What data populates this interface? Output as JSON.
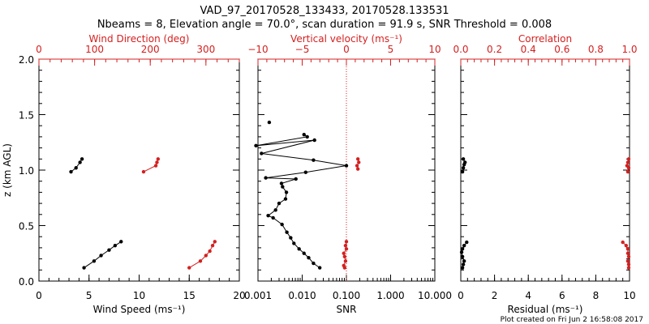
{
  "header": {
    "title": "VAD_97_20170528_133433, 20170528.133531",
    "subtitle": "Nbeams = 8, Elevation angle = 70.0°, scan duration = 91.9 s, SNR Threshold = 0.008"
  },
  "colors": {
    "primary": "#000000",
    "secondary": "#d42020",
    "background": "#ffffff"
  },
  "footer": {
    "created": "Plot created on Fri Jun  2 16:58:08 2017"
  },
  "chart_data": [
    {
      "type": "line",
      "panel": "left",
      "ylabel": "z (km AGL)",
      "ylim": [
        0.0,
        2.0
      ],
      "yticks": [
        0.0,
        0.5,
        1.0,
        1.5,
        2.0
      ],
      "ytick_labels": [
        "0.0",
        "0.5",
        "1.0",
        "1.5",
        "2.0"
      ],
      "bottom_axis": {
        "label": "Wind Speed (ms⁻¹)",
        "lim": [
          0,
          20
        ],
        "ticks": [
          0,
          5,
          10,
          15,
          20
        ],
        "tick_labels": [
          "0",
          "5",
          "10",
          "15",
          "20"
        ]
      },
      "top_axis": {
        "label": "Wind Direction (deg)",
        "lim": [
          0,
          360
        ],
        "ticks": [
          0,
          100,
          200,
          300
        ],
        "tick_labels": [
          "0",
          "100",
          "200",
          "300"
        ]
      },
      "series": [
        {
          "name": "Wind Speed",
          "axis": "bottom",
          "color": "#000000",
          "segments": [
            [
              [
                4.5,
                0.12
              ],
              [
                5.5,
                0.18
              ],
              [
                6.2,
                0.23
              ],
              [
                7.0,
                0.28
              ],
              [
                7.6,
                0.32
              ],
              [
                8.2,
                0.355
              ]
            ],
            [
              [
                3.2,
                0.985
              ],
              [
                3.7,
                1.02
              ],
              [
                4.1,
                1.07
              ],
              [
                4.3,
                1.1
              ]
            ]
          ]
        },
        {
          "name": "Wind Direction",
          "axis": "top",
          "color": "#d42020",
          "segments": [
            [
              [
                270,
                0.12
              ],
              [
                290,
                0.18
              ],
              [
                300,
                0.23
              ],
              [
                307,
                0.27
              ],
              [
                312,
                0.32
              ],
              [
                316,
                0.355
              ]
            ],
            [
              [
                188,
                0.985
              ],
              [
                210,
                1.04
              ],
              [
                212,
                1.07
              ],
              [
                214,
                1.1
              ]
            ]
          ]
        }
      ]
    },
    {
      "type": "line",
      "panel": "middle",
      "ylim": [
        0.0,
        2.0
      ],
      "bottom_axis": {
        "label": "SNR",
        "scale": "log",
        "lim": [
          0.001,
          10
        ],
        "ticks": [
          0.001,
          0.01,
          0.1,
          1,
          10
        ],
        "tick_labels": [
          "0.001",
          "0.010",
          "0.100",
          "1.000",
          "10.000"
        ]
      },
      "top_axis": {
        "label": "Vertical velocity (ms⁻¹)",
        "lim": [
          -10,
          10
        ],
        "ticks": [
          -10,
          -5,
          0,
          5,
          10
        ],
        "tick_labels": [
          "−10",
          "−5",
          "0",
          "5",
          "10"
        ]
      },
      "reference_line": {
        "axis": "top",
        "value": 0,
        "style": "dotted",
        "color": "#d42020"
      },
      "series": [
        {
          "name": "SNR",
          "axis": "bottom",
          "color": "#000000",
          "segments": [
            [
              [
                0.025,
                0.12
              ],
              [
                0.018,
                0.16
              ],
              [
                0.014,
                0.21
              ],
              [
                0.011,
                0.25
              ],
              [
                0.0085,
                0.29
              ],
              [
                0.0065,
                0.34
              ],
              [
                0.0055,
                0.39
              ],
              [
                0.0045,
                0.44
              ],
              [
                0.0035,
                0.51
              ],
              [
                0.0022,
                0.57
              ],
              [
                0.0017,
                0.59
              ],
              [
                0.0025,
                0.64
              ],
              [
                0.003,
                0.7
              ],
              [
                0.0042,
                0.74
              ],
              [
                0.0044,
                0.8
              ],
              [
                0.0036,
                0.85
              ],
              [
                0.0034,
                0.88
              ],
              [
                0.0072,
                0.92
              ],
              [
                0.0015,
                0.93
              ],
              [
                0.012,
                0.98
              ],
              [
                0.1,
                1.04
              ],
              [
                0.018,
                1.09
              ],
              [
                0.0012,
                1.15
              ],
              [
                0.019,
                1.27
              ],
              [
                0.0009,
                1.22
              ],
              [
                0.013,
                1.3
              ],
              [
                0.011,
                1.32
              ]
            ],
            [
              [
                0.0018,
                1.43
              ]
            ]
          ]
        },
        {
          "name": "Vertical velocity",
          "axis": "top",
          "color": "#d42020",
          "segments": [
            [
              [
                -0.2,
                0.12
              ],
              [
                -0.3,
                0.14
              ],
              [
                -0.1,
                0.18
              ],
              [
                -0.2,
                0.22
              ],
              [
                -0.3,
                0.25
              ],
              [
                0.0,
                0.29
              ],
              [
                -0.1,
                0.32
              ],
              [
                0.0,
                0.355
              ]
            ],
            [
              [
                1.3,
                1.01
              ],
              [
                1.2,
                1.04
              ],
              [
                1.4,
                1.07
              ],
              [
                1.3,
                1.1
              ]
            ]
          ]
        }
      ]
    },
    {
      "type": "line",
      "panel": "right",
      "ylim": [
        0.0,
        2.0
      ],
      "bottom_axis": {
        "label": "Residual (ms⁻¹)",
        "lim": [
          0,
          10
        ],
        "ticks": [
          0,
          2,
          4,
          6,
          8,
          10
        ],
        "tick_labels": [
          "0",
          "2",
          "4",
          "6",
          "8",
          "10"
        ]
      },
      "top_axis": {
        "label": "Correlation",
        "lim": [
          0.0,
          1.0
        ],
        "ticks": [
          0.0,
          0.2,
          0.4,
          0.6,
          0.8,
          1.0
        ],
        "tick_labels": [
          "0.0",
          "0.2",
          "0.4",
          "0.6",
          "0.8",
          "1.0"
        ]
      },
      "series": [
        {
          "name": "Residual",
          "axis": "bottom",
          "color": "#000000",
          "segments": [
            [
              [
                0.1,
                0.12
              ],
              [
                0.15,
                0.15
              ],
              [
                0.2,
                0.18
              ],
              [
                0.1,
                0.22
              ],
              [
                0.05,
                0.26
              ],
              [
                0.1,
                0.29
              ],
              [
                0.2,
                0.32
              ],
              [
                0.35,
                0.35
              ]
            ],
            [
              [
                0.1,
                0.985
              ],
              [
                0.15,
                1.02
              ],
              [
                0.2,
                1.05
              ],
              [
                0.25,
                1.07
              ],
              [
                0.15,
                1.1
              ]
            ]
          ]
        },
        {
          "name": "Correlation",
          "axis": "top",
          "color": "#d42020",
          "segments": [
            [
              [
                0.995,
                0.12
              ],
              [
                0.995,
                0.15
              ],
              [
                0.99,
                0.18
              ],
              [
                0.995,
                0.22
              ],
              [
                0.99,
                0.25
              ],
              [
                0.99,
                0.29
              ],
              [
                0.98,
                0.32
              ],
              [
                0.96,
                0.35
              ]
            ],
            [
              [
                0.99,
                0.985
              ],
              [
                0.995,
                1.02
              ],
              [
                0.985,
                1.04
              ],
              [
                0.99,
                1.07
              ],
              [
                0.995,
                1.1
              ]
            ]
          ]
        }
      ]
    }
  ]
}
